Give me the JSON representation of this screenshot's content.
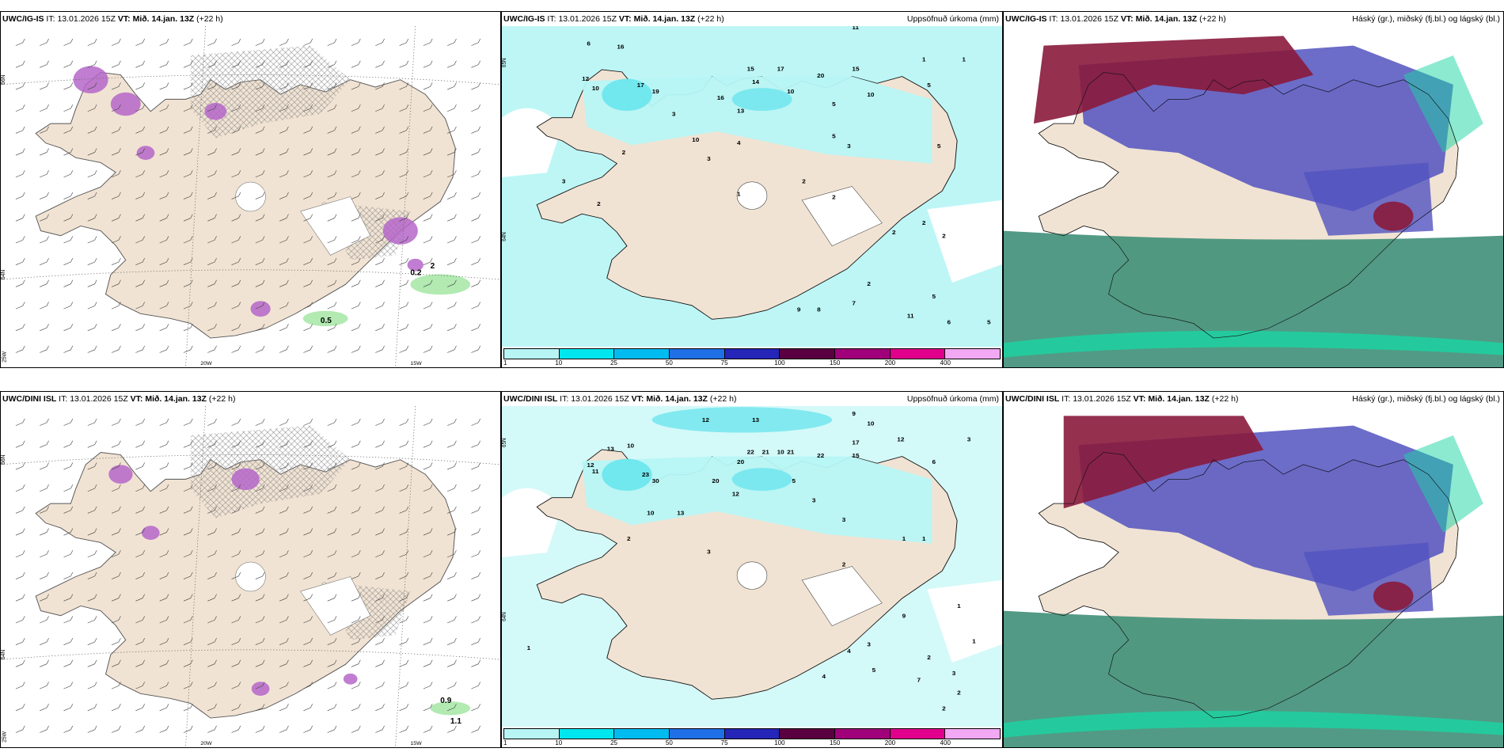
{
  "colors": {
    "land": "#f1e3d3",
    "snow_wind": "#b566c9",
    "rain_wind": "#9fe59f",
    "precip_light": "#b7f5f5",
    "precip_mid": "#5fe3ec",
    "cloud_high": "#8a1a3c",
    "cloud_mid": "#5252c0",
    "cloud_low": "#3f8f78",
    "cloud_low_bright": "#19d6a3"
  },
  "rows": [
    {
      "model": "UWC/IG-IS",
      "it_label": "IT:",
      "it_value": "13.01.2026 15Z",
      "vt_label": "VT:",
      "vt_value": "Mið. 14.jan. 13Z",
      "lead": "(+22 h)",
      "wind_panel": {
        "lat_labels": [
          "66N",
          "64N"
        ],
        "lon_labels": [
          "20W",
          "15W"
        ],
        "corner_label": "25W",
        "values": [
          {
            "v": "0.5",
            "lx": 0.64,
            "ly": 0.87
          },
          {
            "v": "2",
            "lx": 0.86,
            "ly": 0.71
          },
          {
            "v": "0.2",
            "lx": 0.82,
            "ly": 0.73
          }
        ]
      },
      "precip_panel": {
        "title": "Uppsöfnuð úrkoma (mm)",
        "lat_labels": [
          "65N",
          "64N"
        ],
        "values": [
          {
            "v": "11",
            "lx": 0.7,
            "ly": 0.01
          },
          {
            "v": "6",
            "lx": 0.17,
            "ly": 0.06
          },
          {
            "v": "16",
            "lx": 0.23,
            "ly": 0.07
          },
          {
            "v": "12",
            "lx": 0.16,
            "ly": 0.17
          },
          {
            "v": "10",
            "lx": 0.18,
            "ly": 0.2
          },
          {
            "v": "17",
            "lx": 0.27,
            "ly": 0.19
          },
          {
            "v": "19",
            "lx": 0.3,
            "ly": 0.21
          },
          {
            "v": "15",
            "lx": 0.49,
            "ly": 0.14
          },
          {
            "v": "17",
            "lx": 0.55,
            "ly": 0.14
          },
          {
            "v": "20",
            "lx": 0.63,
            "ly": 0.16
          },
          {
            "v": "15",
            "lx": 0.7,
            "ly": 0.14
          },
          {
            "v": "14",
            "lx": 0.5,
            "ly": 0.18
          },
          {
            "v": "10",
            "lx": 0.57,
            "ly": 0.21
          },
          {
            "v": "10",
            "lx": 0.73,
            "ly": 0.22
          },
          {
            "v": "16",
            "lx": 0.43,
            "ly": 0.23
          },
          {
            "v": "13",
            "lx": 0.47,
            "ly": 0.27
          },
          {
            "v": "5",
            "lx": 0.85,
            "ly": 0.19
          },
          {
            "v": "1",
            "lx": 0.84,
            "ly": 0.11
          },
          {
            "v": "1",
            "lx": 0.92,
            "ly": 0.11
          },
          {
            "v": "5",
            "lx": 0.66,
            "ly": 0.25
          },
          {
            "v": "3",
            "lx": 0.34,
            "ly": 0.28
          },
          {
            "v": "10",
            "lx": 0.38,
            "ly": 0.36
          },
          {
            "v": "4",
            "lx": 0.47,
            "ly": 0.37
          },
          {
            "v": "5",
            "lx": 0.66,
            "ly": 0.35
          },
          {
            "v": "3",
            "lx": 0.69,
            "ly": 0.38
          },
          {
            "v": "2",
            "lx": 0.24,
            "ly": 0.4
          },
          {
            "v": "3",
            "lx": 0.41,
            "ly": 0.42
          },
          {
            "v": "5",
            "lx": 0.87,
            "ly": 0.38
          },
          {
            "v": "2",
            "lx": 0.6,
            "ly": 0.49
          },
          {
            "v": "2",
            "lx": 0.19,
            "ly": 0.56
          },
          {
            "v": "3",
            "lx": 0.12,
            "ly": 0.49
          },
          {
            "v": "1",
            "lx": 0.47,
            "ly": 0.53
          },
          {
            "v": "2",
            "lx": 0.66,
            "ly": 0.54
          },
          {
            "v": "2",
            "lx": 0.84,
            "ly": 0.62
          },
          {
            "v": "2",
            "lx": 0.88,
            "ly": 0.66
          },
          {
            "v": "2",
            "lx": 0.78,
            "ly": 0.65
          },
          {
            "v": "5",
            "lx": 0.86,
            "ly": 0.85
          },
          {
            "v": "9",
            "lx": 0.59,
            "ly": 0.89
          },
          {
            "v": "8",
            "lx": 0.63,
            "ly": 0.89
          },
          {
            "v": "11",
            "lx": 0.81,
            "ly": 0.91
          },
          {
            "v": "6",
            "lx": 0.89,
            "ly": 0.93
          },
          {
            "v": "5",
            "lx": 0.97,
            "ly": 0.93
          },
          {
            "v": "2",
            "lx": 0.73,
            "ly": 0.81
          },
          {
            "v": "7",
            "lx": 0.7,
            "ly": 0.87
          }
        ],
        "colorbar": {
          "colors": [
            "#b7f5f5",
            "#00e6ee",
            "#00bbf0",
            "#1f6fe6",
            "#2525b8",
            "#5a0040",
            "#a0007a",
            "#e0008c",
            "#f2a8f2"
          ],
          "labels": [
            "1",
            "10",
            "25",
            "50",
            "75",
            "100",
            "150",
            "200",
            "400"
          ]
        }
      },
      "cloud_panel": {
        "title": "Háský (gr.), miðský (fj.bl.) og lágský (bl.)"
      }
    },
    {
      "model": "UWC/DINI ISL",
      "it_label": "IT:",
      "it_value": "13.01.2026 15Z",
      "vt_label": "VT:",
      "vt_value": "Mið. 14.jan. 13Z",
      "lead": "(+22 h)",
      "wind_panel": {
        "lat_labels": [
          "66N",
          "64N"
        ],
        "lon_labels": [
          "20W",
          "15W"
        ],
        "corner_label": "25W",
        "values": [
          {
            "v": "0.9",
            "lx": 0.88,
            "ly": 0.87
          },
          {
            "v": "1.1",
            "lx": 0.9,
            "ly": 0.93
          }
        ]
      },
      "precip_panel": {
        "title": "Uppsöfnuð úrkoma (mm)",
        "lat_labels": [
          "65N",
          "64N"
        ],
        "values": [
          {
            "v": "12",
            "lx": 0.4,
            "ly": 0.05
          },
          {
            "v": "13",
            "lx": 0.5,
            "ly": 0.05
          },
          {
            "v": "9",
            "lx": 0.7,
            "ly": 0.03
          },
          {
            "v": "10",
            "lx": 0.73,
            "ly": 0.06
          },
          {
            "v": "12",
            "lx": 0.79,
            "ly": 0.11
          },
          {
            "v": "3",
            "lx": 0.93,
            "ly": 0.11
          },
          {
            "v": "22",
            "lx": 0.49,
            "ly": 0.15
          },
          {
            "v": "21",
            "lx": 0.52,
            "ly": 0.15
          },
          {
            "v": "10",
            "lx": 0.55,
            "ly": 0.15
          },
          {
            "v": "21",
            "lx": 0.57,
            "ly": 0.15
          },
          {
            "v": "17",
            "lx": 0.7,
            "ly": 0.12
          },
          {
            "v": "15",
            "lx": 0.7,
            "ly": 0.16
          },
          {
            "v": "22",
            "lx": 0.63,
            "ly": 0.16
          },
          {
            "v": "20",
            "lx": 0.47,
            "ly": 0.18
          },
          {
            "v": "13",
            "lx": 0.21,
            "ly": 0.14
          },
          {
            "v": "10",
            "lx": 0.25,
            "ly": 0.13
          },
          {
            "v": "23",
            "lx": 0.28,
            "ly": 0.22
          },
          {
            "v": "30",
            "lx": 0.3,
            "ly": 0.24
          },
          {
            "v": "12",
            "lx": 0.17,
            "ly": 0.19
          },
          {
            "v": "11",
            "lx": 0.18,
            "ly": 0.21
          },
          {
            "v": "20",
            "lx": 0.42,
            "ly": 0.24
          },
          {
            "v": "12",
            "lx": 0.46,
            "ly": 0.28
          },
          {
            "v": "13",
            "lx": 0.35,
            "ly": 0.34
          },
          {
            "v": "10",
            "lx": 0.29,
            "ly": 0.34
          },
          {
            "v": "6",
            "lx": 0.86,
            "ly": 0.18
          },
          {
            "v": "5",
            "lx": 0.58,
            "ly": 0.24
          },
          {
            "v": "3",
            "lx": 0.62,
            "ly": 0.3
          },
          {
            "v": "3",
            "lx": 0.68,
            "ly": 0.36
          },
          {
            "v": "2",
            "lx": 0.25,
            "ly": 0.42
          },
          {
            "v": "3",
            "lx": 0.41,
            "ly": 0.46
          },
          {
            "v": "1",
            "lx": 0.8,
            "ly": 0.42
          },
          {
            "v": "1",
            "lx": 0.84,
            "ly": 0.42
          },
          {
            "v": "2",
            "lx": 0.68,
            "ly": 0.5
          },
          {
            "v": "1",
            "lx": 0.05,
            "ly": 0.76
          },
          {
            "v": "9",
            "lx": 0.8,
            "ly": 0.66
          },
          {
            "v": "1",
            "lx": 0.91,
            "ly": 0.63
          },
          {
            "v": "1",
            "lx": 0.94,
            "ly": 0.74
          },
          {
            "v": "4",
            "lx": 0.69,
            "ly": 0.77
          },
          {
            "v": "3",
            "lx": 0.73,
            "ly": 0.75
          },
          {
            "v": "5",
            "lx": 0.74,
            "ly": 0.83
          },
          {
            "v": "4",
            "lx": 0.64,
            "ly": 0.85
          },
          {
            "v": "7",
            "lx": 0.83,
            "ly": 0.86
          },
          {
            "v": "2",
            "lx": 0.85,
            "ly": 0.79
          },
          {
            "v": "3",
            "lx": 0.9,
            "ly": 0.84
          },
          {
            "v": "2",
            "lx": 0.91,
            "ly": 0.9
          },
          {
            "v": "2",
            "lx": 0.88,
            "ly": 0.95
          }
        ],
        "colorbar": {
          "colors": [
            "#b7f5f5",
            "#00e6ee",
            "#00bbf0",
            "#1f6fe6",
            "#2525b8",
            "#5a0040",
            "#a0007a",
            "#e0008c",
            "#f2a8f2"
          ],
          "labels": [
            "1",
            "10",
            "25",
            "50",
            "75",
            "100",
            "150",
            "200",
            "400"
          ]
        }
      },
      "cloud_panel": {
        "title": "Háský (gr.), miðský (fj.bl.) og lágský (bl.)"
      }
    }
  ]
}
